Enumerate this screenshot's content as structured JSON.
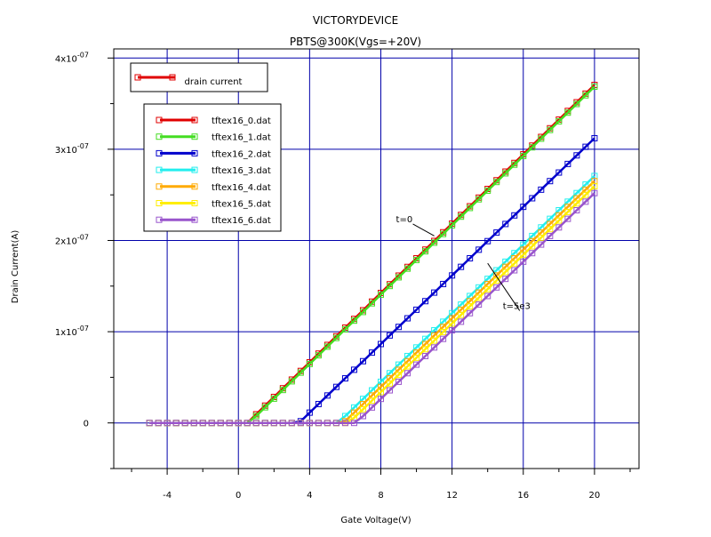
{
  "chart_data": {
    "type": "line",
    "title": "VICTORYDEVICE",
    "subtitle": "PBTS@300K(Vgs=+20V)",
    "xlabel": "Gate Voltage(V)",
    "ylabel": "Drain Current(A)",
    "xlim": [
      -7,
      22.5
    ],
    "ylim": [
      -5e-08,
      4.1e-07
    ],
    "x_ticks": [
      -4,
      0,
      4,
      8,
      12,
      16,
      20
    ],
    "x_tick_labels": [
      "-4",
      "0",
      "4",
      "8",
      "12",
      "16",
      "20"
    ],
    "y_ticks": [
      0,
      1e-07,
      2e-07,
      3e-07,
      4e-07
    ],
    "y_tick_labels": [
      {
        "mantissa": "0",
        "exp": ""
      },
      {
        "mantissa": "1x10",
        "exp": "-07"
      },
      {
        "mantissa": "2x10",
        "exp": "-07"
      },
      {
        "mantissa": "3x10",
        "exp": "-07"
      },
      {
        "mantissa": "4x10",
        "exp": "-07"
      }
    ],
    "grid": true,
    "legend_placement": "top-left",
    "legend_title": {
      "label": "drain current",
      "color": "#e00000"
    },
    "series": [
      {
        "name": "tftex16_0.dat",
        "color": "#e00000",
        "threshold": 0.5,
        "slope": 1.9e-08
      },
      {
        "name": "tftex16_1.dat",
        "color": "#44dd22",
        "threshold": 0.6,
        "slope": 1.9e-08
      },
      {
        "name": "tftex16_2.dat",
        "color": "#0000cc",
        "threshold": 3.4,
        "slope": 1.88e-08
      },
      {
        "name": "tftex16_3.dat",
        "color": "#22eeee",
        "threshold": 5.6,
        "slope": 1.88e-08
      },
      {
        "name": "tftex16_4.dat",
        "color": "#ffaa00",
        "threshold": 5.9,
        "slope": 1.88e-08
      },
      {
        "name": "tftex16_5.dat",
        "color": "#ffee00",
        "threshold": 6.2,
        "slope": 1.88e-08
      },
      {
        "name": "tftex16_6.dat",
        "color": "#9955cc",
        "threshold": 6.6,
        "slope": 1.88e-08
      }
    ],
    "sweep": {
      "x_start": -5,
      "x_end": 20,
      "step": 0.5
    },
    "annotations": [
      {
        "text": "t=0",
        "x": 9.0,
        "y": 2.2e-07,
        "arrow_to_x": 11.0,
        "arrow_to_y": 2.05e-07
      },
      {
        "text": "t=5e3",
        "x": 15.0,
        "y": 1.25e-07,
        "arrow_to_x": 14.0,
        "arrow_to_y": 1.75e-07
      }
    ]
  }
}
